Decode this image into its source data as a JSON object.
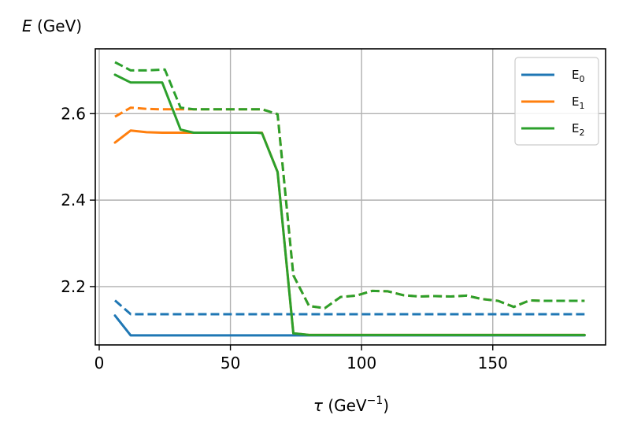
{
  "chart_data": {
    "type": "line",
    "ylabel_var": "E",
    "ylabel_unit": " (GeV)",
    "xlabel_var": "τ",
    "xlabel_unit_pre": " (GeV",
    "xlabel_unit_sup": "−1",
    "xlabel_unit_post": ")",
    "xlim": [
      -1.5,
      193
    ],
    "ylim": [
      2.065,
      2.75
    ],
    "xticks": [
      0,
      50,
      100,
      150
    ],
    "xtick_labels": [
      "0",
      "50",
      "100",
      "150"
    ],
    "yticks": [
      2.2,
      2.4,
      2.6
    ],
    "ytick_labels": [
      "2.2",
      "2.4",
      "2.6"
    ],
    "grid": true,
    "legend_position": "top-right",
    "series": [
      {
        "name_base": "E",
        "name_sub": "0",
        "color": "#1f77b4",
        "style": "solid",
        "x": [
          6,
          12,
          18,
          24,
          30,
          36,
          42,
          48,
          54,
          60,
          66,
          72,
          78,
          84,
          90,
          96,
          102,
          108,
          114,
          120,
          126,
          132,
          138,
          144,
          150,
          156,
          162,
          168,
          174,
          180,
          185
        ],
        "y": [
          2.133,
          2.087,
          2.087,
          2.087,
          2.087,
          2.087,
          2.087,
          2.087,
          2.087,
          2.087,
          2.087,
          2.087,
          2.087,
          2.087,
          2.087,
          2.087,
          2.087,
          2.087,
          2.087,
          2.087,
          2.087,
          2.087,
          2.087,
          2.087,
          2.087,
          2.087,
          2.087,
          2.087,
          2.087,
          2.087,
          2.087
        ]
      },
      {
        "name_base": "E",
        "name_sub": "0",
        "color": "#1f77b4",
        "style": "dashed",
        "x": [
          6,
          12,
          18,
          24,
          30,
          36,
          42,
          48,
          54,
          60,
          66,
          72,
          78,
          84,
          90,
          96,
          102,
          108,
          114,
          120,
          126,
          132,
          138,
          144,
          150,
          156,
          162,
          168,
          174,
          180,
          185
        ],
        "y": [
          2.168,
          2.136,
          2.136,
          2.136,
          2.136,
          2.136,
          2.136,
          2.136,
          2.136,
          2.136,
          2.136,
          2.136,
          2.136,
          2.136,
          2.136,
          2.136,
          2.136,
          2.136,
          2.136,
          2.136,
          2.136,
          2.136,
          2.136,
          2.136,
          2.136,
          2.136,
          2.136,
          2.136,
          2.136,
          2.136,
          2.136
        ]
      },
      {
        "name_base": "E",
        "name_sub": "1",
        "color": "#ff7f0e",
        "style": "solid",
        "x": [
          6,
          12,
          18,
          24,
          30,
          36,
          42,
          48,
          54,
          60,
          62,
          68,
          74,
          80,
          86,
          92,
          98,
          104,
          110,
          116,
          122,
          128,
          134,
          140,
          146,
          152,
          158,
          164,
          170,
          176,
          185
        ],
        "y": [
          2.533,
          2.561,
          2.557,
          2.556,
          2.556,
          2.556,
          2.556,
          2.556,
          2.556,
          2.556,
          2.556,
          2.465,
          2.092,
          2.088,
          2.088,
          2.088,
          2.088,
          2.088,
          2.088,
          2.088,
          2.088,
          2.088,
          2.088,
          2.088,
          2.088,
          2.088,
          2.088,
          2.088,
          2.088,
          2.088,
          2.088
        ]
      },
      {
        "name_base": "E",
        "name_sub": "1",
        "color": "#ff7f0e",
        "style": "dashed",
        "x": [
          6,
          12,
          18,
          24,
          30,
          36,
          42,
          48,
          54,
          60,
          62,
          68,
          74,
          80,
          86,
          92,
          98,
          104,
          110,
          116,
          122,
          128,
          134,
          140,
          146,
          152,
          158,
          164,
          170,
          176,
          185
        ],
        "y": [
          2.593,
          2.614,
          2.611,
          2.61,
          2.61,
          2.61,
          2.61,
          2.61,
          2.61,
          2.61,
          2.61,
          2.599,
          2.226,
          2.155,
          2.15,
          2.176,
          2.179,
          2.19,
          2.189,
          2.18,
          2.177,
          2.178,
          2.177,
          2.179,
          2.171,
          2.167,
          2.153,
          2.168,
          2.167,
          2.167,
          2.167
        ]
      },
      {
        "name_base": "E",
        "name_sub": "2",
        "color": "#2ca02c",
        "style": "solid",
        "x": [
          6,
          12,
          18,
          24,
          31,
          36,
          42,
          48,
          54,
          60,
          62,
          68,
          74,
          80,
          86,
          92,
          98,
          104,
          110,
          116,
          122,
          128,
          134,
          140,
          146,
          152,
          158,
          164,
          170,
          176,
          185
        ],
        "y": [
          2.69,
          2.672,
          2.672,
          2.672,
          2.563,
          2.556,
          2.556,
          2.556,
          2.556,
          2.556,
          2.555,
          2.465,
          2.092,
          2.088,
          2.088,
          2.088,
          2.088,
          2.088,
          2.088,
          2.088,
          2.088,
          2.088,
          2.088,
          2.088,
          2.088,
          2.088,
          2.088,
          2.088,
          2.088,
          2.088,
          2.088
        ]
      },
      {
        "name_base": "E",
        "name_sub": "2",
        "color": "#2ca02c",
        "style": "dashed",
        "x": [
          6,
          12,
          18,
          25,
          31,
          36,
          42,
          48,
          54,
          60,
          62,
          68,
          74,
          80,
          86,
          92,
          98,
          104,
          110,
          116,
          122,
          128,
          134,
          140,
          146,
          152,
          158,
          164,
          170,
          176,
          185
        ],
        "y": [
          2.719,
          2.7,
          2.7,
          2.702,
          2.614,
          2.61,
          2.61,
          2.61,
          2.61,
          2.61,
          2.61,
          2.599,
          2.226,
          2.155,
          2.15,
          2.176,
          2.179,
          2.19,
          2.189,
          2.18,
          2.177,
          2.178,
          2.177,
          2.179,
          2.171,
          2.167,
          2.153,
          2.168,
          2.167,
          2.167,
          2.167
        ]
      }
    ],
    "legend": [
      {
        "base": "E",
        "sub": "0",
        "color": "#1f77b4"
      },
      {
        "base": "E",
        "sub": "1",
        "color": "#ff7f0e"
      },
      {
        "base": "E",
        "sub": "2",
        "color": "#2ca02c"
      }
    ]
  }
}
